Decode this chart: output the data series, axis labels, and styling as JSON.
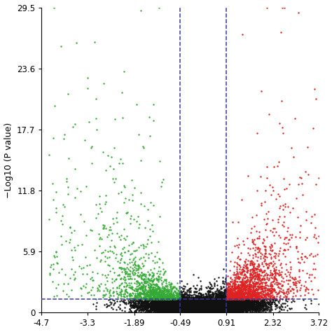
{
  "title": "",
  "xlabel": "",
  "ylabel": "−Log10 (P value)",
  "xlim": [
    -4.7,
    3.72
  ],
  "ylim": [
    0,
    29.5
  ],
  "xticks": [
    -4.7,
    -3.3,
    -1.89,
    -0.49,
    0.91,
    2.32,
    3.72
  ],
  "yticks": [
    0,
    5.9,
    11.8,
    17.7,
    23.6,
    29.5
  ],
  "vline1": -0.49,
  "vline2": 0.91,
  "hline": 1.3,
  "color_left": "#33aa33",
  "color_right": "#dd2222",
  "color_center": "#111111",
  "dot_size": 3,
  "seed": 42,
  "dashed_color": "#3a3a9a",
  "bg_color": "#ffffff"
}
